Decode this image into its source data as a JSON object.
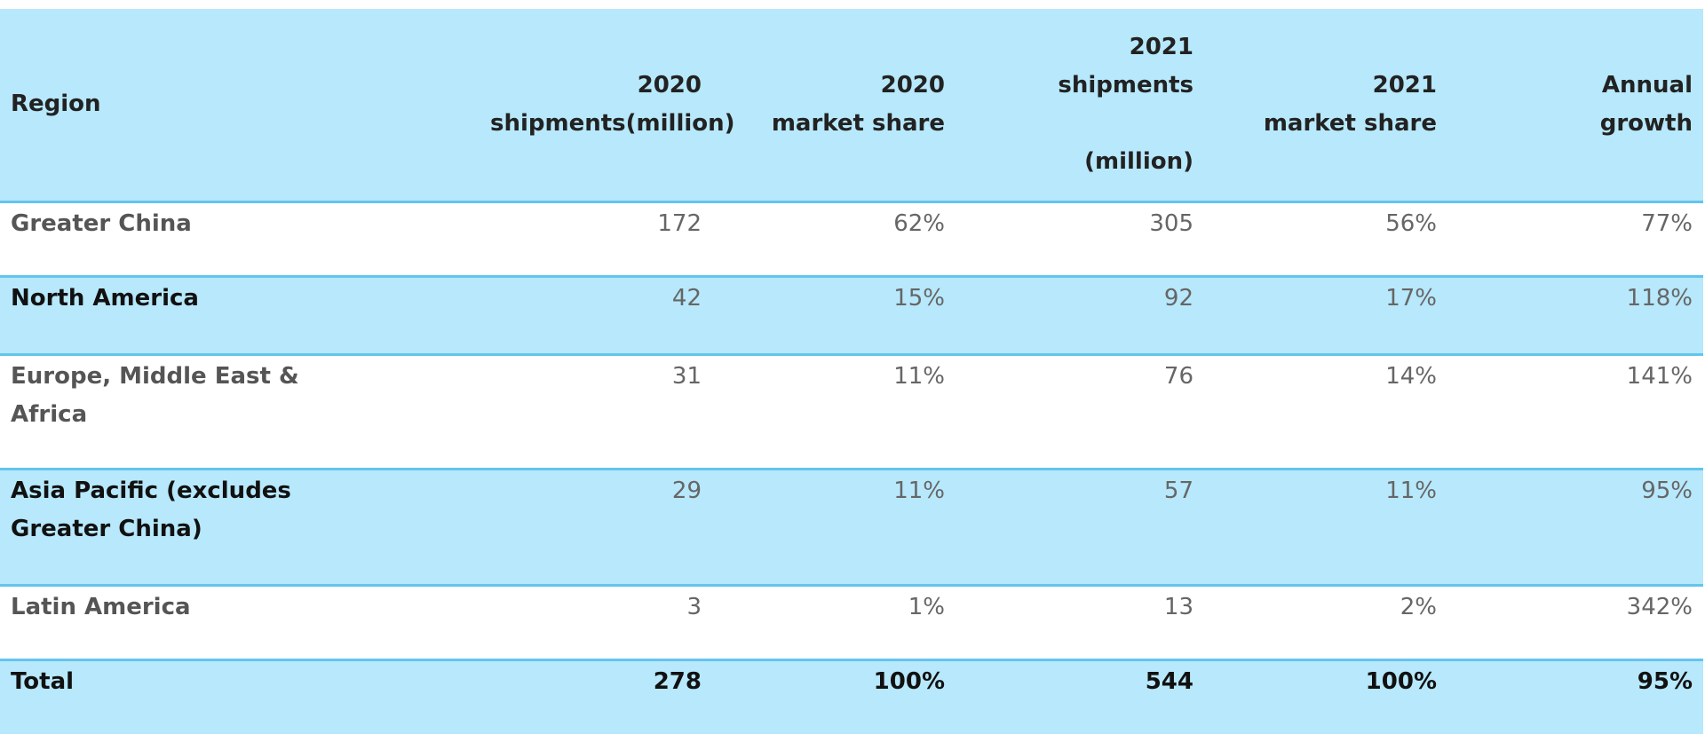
{
  "chart_data": {
    "type": "table",
    "columns": [
      [
        "Region"
      ],
      [
        "2020",
        "shipments(million)"
      ],
      [
        "2020",
        "market share"
      ],
      [
        "2021",
        "shipments",
        "",
        "(million)"
      ],
      [
        "2021",
        "market share"
      ],
      [
        "Annual",
        "growth"
      ]
    ],
    "rows": [
      {
        "region": [
          "Greater China"
        ],
        "shipments_2020": "172",
        "share_2020": "62%",
        "shipments_2021": "305",
        "share_2021": "56%",
        "growth": "77%"
      },
      {
        "region": [
          "North America"
        ],
        "shipments_2020": "42",
        "share_2020": "15%",
        "shipments_2021": "92",
        "share_2021": "17%",
        "growth": "118%"
      },
      {
        "region": [
          "Europe, Middle East &",
          "Africa"
        ],
        "shipments_2020": "31",
        "share_2020": "11%",
        "shipments_2021": "76",
        "share_2021": "14%",
        "growth": "141%"
      },
      {
        "region": [
          "Asia Pacific (excludes",
          "Greater China)"
        ],
        "shipments_2020": "29",
        "share_2020": "11%",
        "shipments_2021": "57",
        "share_2021": "11%",
        "growth": "95%"
      },
      {
        "region": [
          "Latin America"
        ],
        "shipments_2020": "3",
        "share_2020": "1%",
        "shipments_2021": "13",
        "share_2021": "2%",
        "growth": "342%"
      },
      {
        "region": [
          "Total"
        ],
        "shipments_2020": "278",
        "share_2020": "100%",
        "shipments_2021": "544",
        "share_2021": "100%",
        "growth": "95%"
      }
    ]
  },
  "colors": {
    "header_bg": "#b7e8fb",
    "row_alt_bg": "#b7e8fb",
    "divider": "#62c5ee",
    "text_dark": "#111111",
    "text_muted": "#666666"
  }
}
